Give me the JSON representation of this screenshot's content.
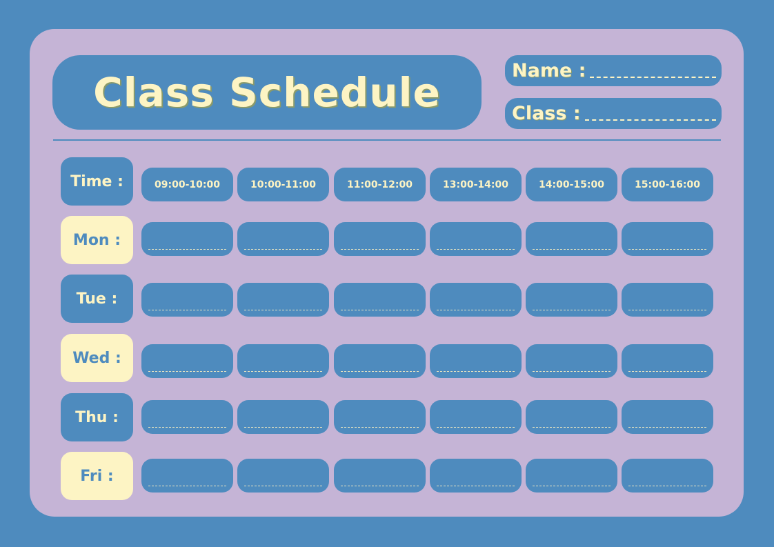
{
  "colors": {
    "background": "#4e8bbe",
    "card": "#c5b4d6",
    "cream": "#fdf4c4"
  },
  "header": {
    "title": "Class Schedule",
    "name_label": "Name :",
    "class_label": "Class :"
  },
  "time_label": "Time :",
  "times": [
    "09:00-10:00",
    "10:00-11:00",
    "11:00-12:00",
    "13:00-14:00",
    "14:00-15:00",
    "15:00-16:00"
  ],
  "days": [
    "Mon :",
    "Tue :",
    "Wed :",
    "Thu :",
    "Fri :"
  ]
}
